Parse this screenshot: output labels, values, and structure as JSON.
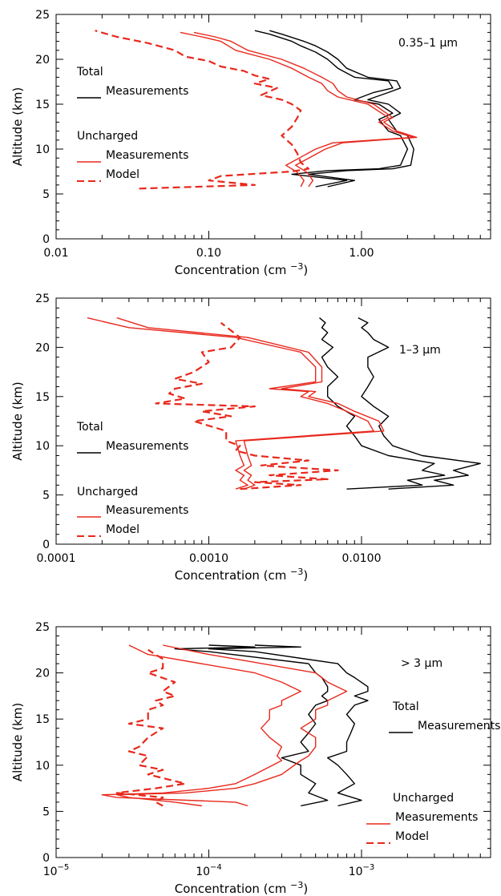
{
  "colors": {
    "total": "#000000",
    "uncharged": "#e8281c",
    "axis": "#000000"
  },
  "chart_data": [
    {
      "type": "line",
      "size_label": "0.35–1 μm",
      "xlabel": "Concentration (cm",
      "xlabel_sup": "−3",
      "xlabel_close": ")",
      "ylabel": "Altitude (km)",
      "xscale": "log",
      "xlim": [
        0.01,
        7
      ],
      "ylim": [
        0,
        25
      ],
      "xticks": [
        {
          "v": 0.01,
          "t": "0.01"
        },
        {
          "v": 0.1,
          "t": "0.10"
        },
        {
          "v": 1,
          "t": "1.00"
        }
      ],
      "yticks": [
        0,
        5,
        10,
        15,
        20,
        25
      ],
      "legend": {
        "total_header": "Total",
        "total_meas": "Measurements",
        "unch_header": "Uncharged",
        "unch_meas": "Measurements",
        "unch_model": "Model"
      },
      "series": [
        {
          "group": "total",
          "style": "solid",
          "x": [
            0.5,
            0.8,
            0.35,
            0.6,
            1.3,
            1.8,
            2.0,
            1.8,
            1.5,
            1.3,
            1.6,
            1.3,
            0.9,
            1.2,
            1.6,
            1.5,
            0.9,
            0.7,
            0.6,
            0.5,
            0.4,
            0.35,
            0.25,
            0.2
          ],
          "y": [
            5.8,
            6.5,
            7.2,
            7.6,
            7.8,
            8.2,
            10.0,
            11.5,
            12.0,
            13.3,
            14.0,
            15.0,
            15.5,
            16.3,
            16.8,
            17.6,
            18.0,
            19.0,
            20.0,
            20.8,
            21.5,
            22.0,
            22.8,
            23.2
          ]
        },
        {
          "group": "total",
          "style": "solid",
          "x": [
            0.6,
            0.9,
            0.45,
            0.8,
            1.6,
            2.1,
            2.2,
            2.0,
            1.7,
            1.5,
            1.8,
            1.5,
            1.1,
            1.5,
            1.8,
            1.7,
            1.1,
            0.8,
            0.7,
            0.6,
            0.5,
            0.42,
            0.3,
            0.25
          ],
          "y": [
            5.8,
            6.5,
            7.2,
            7.6,
            7.8,
            8.2,
            10.0,
            11.5,
            12.0,
            13.3,
            14.0,
            15.0,
            15.5,
            16.3,
            16.8,
            17.6,
            18.0,
            19.0,
            20.0,
            20.8,
            21.5,
            22.0,
            22.8,
            23.2
          ]
        },
        {
          "group": "uncharged",
          "style": "solid",
          "x": [
            0.4,
            0.42,
            0.38,
            0.32,
            0.5,
            0.65,
            2.2,
            1.6,
            1.3,
            1.5,
            1.1,
            0.7,
            0.6,
            0.55,
            0.45,
            0.35,
            0.25,
            0.15,
            0.12,
            0.09,
            0.065
          ],
          "y": [
            5.8,
            6.5,
            7.4,
            8.2,
            10.0,
            10.7,
            11.3,
            12.0,
            13.0,
            13.5,
            15.0,
            15.8,
            16.5,
            17.3,
            18.0,
            19.0,
            20.0,
            21.0,
            22.0,
            22.5,
            23.0
          ]
        },
        {
          "group": "uncharged",
          "style": "solid",
          "x": [
            0.45,
            0.48,
            0.44,
            0.37,
            0.58,
            0.75,
            2.3,
            1.7,
            1.4,
            1.6,
            1.2,
            0.8,
            0.7,
            0.65,
            0.55,
            0.42,
            0.3,
            0.18,
            0.14,
            0.11,
            0.08
          ],
          "y": [
            5.8,
            6.5,
            7.4,
            8.2,
            10.0,
            10.7,
            11.3,
            12.0,
            13.0,
            13.5,
            15.0,
            15.8,
            16.5,
            17.3,
            18.0,
            19.0,
            20.0,
            21.0,
            22.0,
            22.5,
            23.0
          ]
        },
        {
          "group": "uncharged",
          "style": "dashed",
          "x": [
            0.035,
            0.2,
            0.1,
            0.12,
            0.35,
            0.45,
            0.4,
            0.38,
            0.35,
            0.3,
            0.35,
            0.38,
            0.4,
            0.35,
            0.3,
            0.22,
            0.28,
            0.2,
            0.25,
            0.2,
            0.17,
            0.12,
            0.1,
            0.07,
            0.06,
            0.04,
            0.025,
            0.018
          ],
          "y": [
            5.6,
            6.0,
            6.5,
            7.0,
            7.5,
            7.8,
            8.5,
            9.5,
            10.5,
            11.5,
            12.5,
            13.5,
            14.3,
            15.0,
            15.5,
            16.0,
            16.8,
            17.3,
            17.8,
            18.2,
            18.7,
            19.2,
            19.8,
            20.3,
            21.0,
            21.8,
            22.5,
            23.2
          ]
        }
      ]
    },
    {
      "type": "line",
      "size_label": "1–3 μm",
      "xlabel": "Concentration (cm",
      "xlabel_sup": "−3",
      "xlabel_close": ")",
      "ylabel": "Altitude (km)",
      "xscale": "log",
      "xlim": [
        0.0001,
        0.07
      ],
      "ylim": [
        0,
        25
      ],
      "xticks": [
        {
          "v": 0.0001,
          "t": "0.0001"
        },
        {
          "v": 0.001,
          "t": "0.0010"
        },
        {
          "v": 0.01,
          "t": "0.0100"
        }
      ],
      "yticks": [
        0,
        5,
        10,
        15,
        20,
        25
      ],
      "legend": {
        "total_header": "Total",
        "total_meas": "Measurements",
        "unch_header": "Uncharged",
        "unch_meas": "Measurements",
        "unch_model": "Model"
      },
      "series": [
        {
          "group": "total",
          "style": "solid",
          "x": [
            0.008,
            0.025,
            0.02,
            0.035,
            0.025,
            0.03,
            0.015,
            0.01,
            0.009,
            0.008,
            0.009,
            0.007,
            0.006,
            0.006,
            0.007,
            0.006,
            0.0055,
            0.0065,
            0.0055,
            0.006,
            0.0055,
            0.0058,
            0.0053
          ],
          "y": [
            5.6,
            6.0,
            6.5,
            7.0,
            7.5,
            8.2,
            9.0,
            10.0,
            11.0,
            12.0,
            13.0,
            14.0,
            15.0,
            16.0,
            17.0,
            18.0,
            19.0,
            20.0,
            20.8,
            21.5,
            22.0,
            22.5,
            23.0
          ]
        },
        {
          "group": "total",
          "style": "solid",
          "x": [
            0.015,
            0.04,
            0.03,
            0.05,
            0.04,
            0.06,
            0.025,
            0.016,
            0.014,
            0.013,
            0.015,
            0.012,
            0.01,
            0.011,
            0.012,
            0.011,
            0.011,
            0.015,
            0.012,
            0.011,
            0.01,
            0.011,
            0.0095
          ],
          "y": [
            5.6,
            6.0,
            6.5,
            7.0,
            7.5,
            8.2,
            9.0,
            10.0,
            11.0,
            12.0,
            13.0,
            14.0,
            15.0,
            16.0,
            17.0,
            18.0,
            19.0,
            20.0,
            20.8,
            21.5,
            22.0,
            22.5,
            23.0
          ]
        },
        {
          "group": "uncharged",
          "style": "solid",
          "x": [
            0.0015,
            0.0018,
            0.0016,
            0.0017,
            0.0015,
            0.0017,
            0.0016,
            0.0015,
            0.012,
            0.011,
            0.008,
            0.006,
            0.004,
            0.0045,
            0.0025,
            0.005,
            0.005,
            0.004,
            0.0015,
            0.0003,
            0.00016
          ],
          "y": [
            5.6,
            6.0,
            6.5,
            7.0,
            7.5,
            8.0,
            9.0,
            10.5,
            11.5,
            12.5,
            13.5,
            14.3,
            15.0,
            15.5,
            15.8,
            16.5,
            18.0,
            19.5,
            21.0,
            22.0,
            23.0
          ]
        },
        {
          "group": "uncharged",
          "style": "solid",
          "x": [
            0.0017,
            0.002,
            0.0018,
            0.0019,
            0.0017,
            0.0019,
            0.0018,
            0.0017,
            0.014,
            0.013,
            0.009,
            0.007,
            0.0045,
            0.005,
            0.003,
            0.0055,
            0.0055,
            0.0045,
            0.0018,
            0.0004,
            0.00025
          ],
          "y": [
            5.6,
            6.0,
            6.5,
            7.0,
            7.5,
            8.0,
            9.0,
            10.5,
            11.5,
            12.5,
            13.5,
            14.3,
            15.0,
            15.5,
            15.8,
            16.5,
            18.0,
            19.5,
            21.0,
            22.0,
            23.0
          ]
        },
        {
          "group": "uncharged",
          "style": "dashed",
          "x": [
            0.0016,
            0.004,
            0.002,
            0.006,
            0.0025,
            0.007,
            0.0022,
            0.0045,
            0.002,
            0.0015,
            0.0016,
            0.0013,
            0.0013,
            0.0008,
            0.0014,
            0.0009,
            0.002,
            0.00045,
            0.0007,
            0.00055,
            0.0006,
            0.0009,
            0.0006,
            0.0008,
            0.001,
            0.0009,
            0.0014,
            0.0016,
            0.0012
          ],
          "y": [
            5.6,
            6.0,
            6.3,
            6.6,
            7.0,
            7.5,
            8.0,
            8.5,
            9.0,
            9.5,
            10.0,
            10.5,
            11.5,
            12.5,
            13.0,
            13.5,
            14.0,
            14.3,
            14.8,
            15.3,
            15.8,
            16.3,
            16.8,
            17.5,
            18.5,
            19.5,
            20.0,
            21.0,
            22.5
          ]
        }
      ]
    },
    {
      "type": "line",
      "size_label": "> 3 μm",
      "xlabel": "Concentration (cm",
      "xlabel_sup": "−3",
      "xlabel_close": ")",
      "ylabel": "Altitude (km)",
      "xscale": "log",
      "xlim": [
        1e-05,
        0.007
      ],
      "ylim": [
        0,
        25
      ],
      "xticks": [
        {
          "v": 1e-05,
          "t": "10",
          "sup": "−5"
        },
        {
          "v": 0.0001,
          "t": "10",
          "sup": "−4"
        },
        {
          "v": 0.001,
          "t": "10",
          "sup": "−3"
        }
      ],
      "yticks": [
        0,
        5,
        10,
        15,
        20,
        25
      ],
      "legend": {
        "total_header": "Total",
        "total_meas": "Measurements",
        "unch_header": "Uncharged",
        "unch_meas": "Measurements",
        "unch_model": "Model"
      },
      "series": [
        {
          "group": "total",
          "style": "solid",
          "x": [
            0.0004,
            0.0006,
            0.00045,
            0.0005,
            0.0004,
            0.0004,
            0.0003,
            0.00045,
            0.0004,
            0.00045,
            0.0005,
            0.00045,
            0.0005,
            0.0006,
            0.00055,
            0.0006,
            0.0006,
            0.00055,
            0.0005,
            0.00045,
            0.0001,
            6e-05,
            0.0002,
            0.0001
          ],
          "y": [
            5.6,
            6.2,
            7.0,
            8.0,
            9.0,
            10.0,
            10.8,
            11.5,
            12.5,
            13.5,
            14.5,
            15.5,
            16.5,
            17.0,
            17.5,
            18.0,
            18.5,
            19.5,
            20.0,
            21.0,
            22.3,
            22.6,
            22.8,
            23.0
          ]
        },
        {
          "group": "total",
          "style": "solid",
          "x": [
            0.0007,
            0.001,
            0.0007,
            0.0009,
            0.0008,
            0.0007,
            0.0006,
            0.0008,
            0.0008,
            0.00085,
            0.0009,
            0.0008,
            0.0009,
            0.0011,
            0.0009,
            0.0011,
            0.0011,
            0.0009,
            0.0008,
            0.0007,
            0.0002,
            0.0001,
            0.0004,
            0.0002
          ],
          "y": [
            5.6,
            6.2,
            7.0,
            8.0,
            9.0,
            10.0,
            10.8,
            11.5,
            12.5,
            13.5,
            14.5,
            15.5,
            16.5,
            17.0,
            17.5,
            18.0,
            18.5,
            19.5,
            20.0,
            21.0,
            22.3,
            22.6,
            22.8,
            23.0
          ]
        },
        {
          "group": "uncharged",
          "style": "solid",
          "x": [
            0.00018,
            0.00015,
            2.5e-05,
            2e-05,
            5e-05,
            0.0001,
            0.00015,
            0.0002,
            0.0003,
            0.00028,
            0.0003,
            0.00025,
            0.00022,
            0.00025,
            0.00025,
            0.0003,
            0.0003,
            0.0004,
            0.0003,
            0.0002,
            4e-05,
            3e-05
          ],
          "y": [
            5.6,
            6.0,
            6.5,
            6.8,
            7.0,
            7.5,
            8.0,
            9.0,
            10.5,
            11.0,
            12.0,
            13.0,
            14.0,
            15.0,
            16.0,
            16.5,
            17.0,
            18.0,
            19.0,
            20.0,
            22.0,
            23.0
          ]
        },
        {
          "group": "uncharged",
          "style": "solid",
          "x": [
            9e-05,
            6e-05,
            3e-05,
            2.5e-05,
            7e-05,
            0.00015,
            0.0002,
            0.0003,
            0.0004,
            0.00045,
            0.0005,
            0.0005,
            0.0004,
            0.0005,
            0.0005,
            0.0006,
            0.0006,
            0.0008,
            0.0006,
            0.0005,
            0.0001,
            5e-05
          ],
          "y": [
            5.6,
            6.0,
            6.5,
            6.8,
            7.0,
            7.5,
            8.0,
            9.0,
            10.5,
            11.0,
            12.0,
            13.0,
            14.0,
            15.0,
            16.0,
            16.5,
            17.0,
            18.0,
            19.0,
            20.0,
            22.0,
            23.0
          ]
        },
        {
          "group": "uncharged",
          "style": "dashed",
          "x": [
            5e-05,
            4.5e-05,
            5e-05,
            2.5e-05,
            4.5e-05,
            7e-05,
            4e-05,
            5e-05,
            3.5e-05,
            4e-05,
            3e-05,
            3.5e-05,
            4e-05,
            5e-05,
            3e-05,
            4e-05,
            4e-05,
            5e-05,
            4.5e-05,
            6e-05,
            5e-05,
            6e-05,
            4e-05,
            5e-05,
            5e-05,
            4e-05
          ],
          "y": [
            5.6,
            6.0,
            6.5,
            7.0,
            7.5,
            8.0,
            9.0,
            9.5,
            10.0,
            11.0,
            11.5,
            12.0,
            13.0,
            14.0,
            14.5,
            15.0,
            16.0,
            16.5,
            17.0,
            17.5,
            18.0,
            19.0,
            20.0,
            20.5,
            21.5,
            22.5
          ]
        }
      ]
    }
  ]
}
